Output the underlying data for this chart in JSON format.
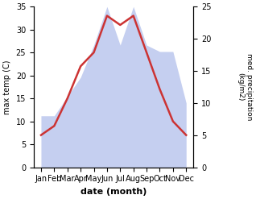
{
  "months": [
    "Jan",
    "Feb",
    "Mar",
    "Apr",
    "May",
    "Jun",
    "Jul",
    "Aug",
    "Sep",
    "Oct",
    "Nov",
    "Dec"
  ],
  "temperature": [
    7,
    9,
    15,
    22,
    25,
    33,
    31,
    33,
    25,
    17,
    10,
    7
  ],
  "precipitation": [
    8,
    8,
    11,
    14,
    19,
    25,
    19,
    25,
    19,
    18,
    18,
    10
  ],
  "temp_color": "#cc3333",
  "precip_color": "#c5cff0",
  "ylabel_left": "max temp (C)",
  "ylabel_right": "med. precipitation\n(kg/m2)",
  "xlabel": "date (month)",
  "ylim_left": [
    0,
    35
  ],
  "ylim_right": [
    0,
    25
  ],
  "yticks_left": [
    0,
    5,
    10,
    15,
    20,
    25,
    30,
    35
  ],
  "yticks_right": [
    0,
    5,
    10,
    15,
    20,
    25
  ],
  "background_color": "#ffffff",
  "line_width": 1.8
}
